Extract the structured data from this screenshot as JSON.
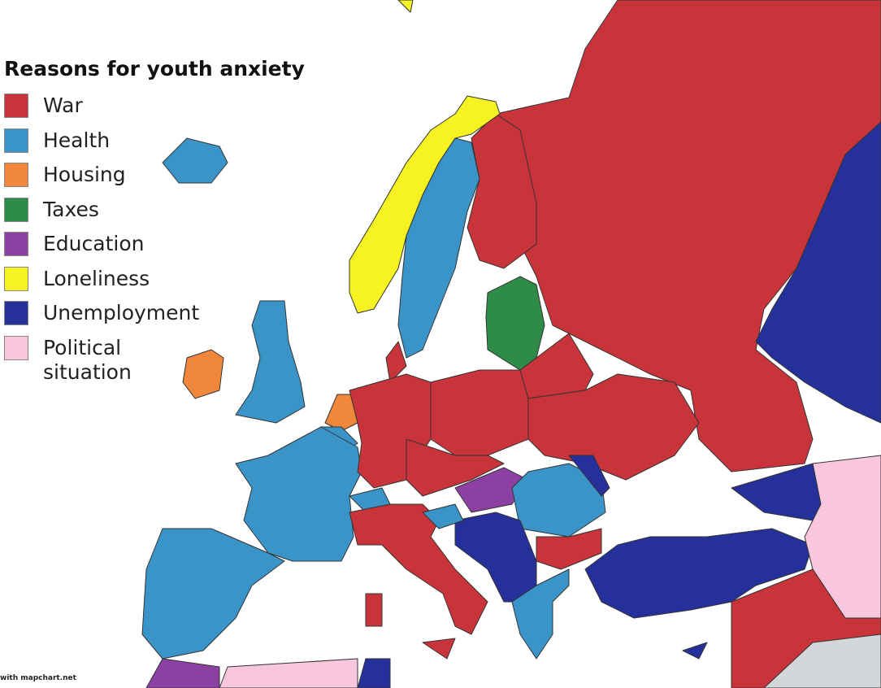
{
  "title": "Reasons for youth anxiety",
  "legend": [
    {
      "label": "War",
      "color": "#c9343a"
    },
    {
      "label": "Health",
      "color": "#3a94c8"
    },
    {
      "label": "Housing",
      "color": "#f0873a"
    },
    {
      "label": "Taxes",
      "color": "#2f8c48"
    },
    {
      "label": "Education",
      "color": "#8b40a2"
    },
    {
      "label": "Loneliness",
      "color": "#f7f221"
    },
    {
      "label": "Unemployment",
      "color": "#25309b"
    },
    {
      "label": "Political situation",
      "color": "#f8c7de"
    }
  ],
  "credit": "with mapchart.net"
}
